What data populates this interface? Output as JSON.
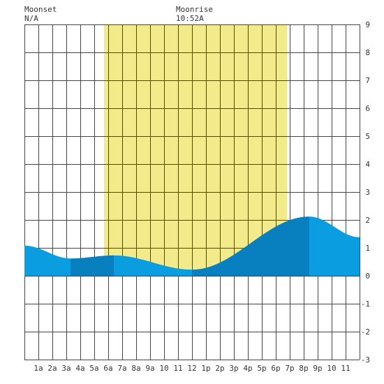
{
  "header": {
    "moonset_label": "Moonset",
    "moonset_value": "N/A",
    "moonrise_label": "Moonrise",
    "moonrise_value": "10:52A"
  },
  "colors": {
    "background": "#ffffff",
    "daylight": "#f3ea8c",
    "grid": "#444444",
    "tide_light": "#0a9de0",
    "tide_dark": "#0880bf"
  },
  "chart_data": {
    "type": "area",
    "title": "",
    "xlabel": "",
    "ylabel": "",
    "xlim": [
      0,
      24
    ],
    "ylim": [
      -3,
      9
    ],
    "grid": true,
    "x_ticks": [
      {
        "x": 1,
        "label": "1a"
      },
      {
        "x": 2,
        "label": "2a"
      },
      {
        "x": 3,
        "label": "3a"
      },
      {
        "x": 4,
        "label": "4a"
      },
      {
        "x": 5,
        "label": "5a"
      },
      {
        "x": 6,
        "label": "6a"
      },
      {
        "x": 7,
        "label": "7a"
      },
      {
        "x": 8,
        "label": "8a"
      },
      {
        "x": 9,
        "label": "9a"
      },
      {
        "x": 10,
        "label": "10"
      },
      {
        "x": 11,
        "label": "11"
      },
      {
        "x": 12,
        "label": "12"
      },
      {
        "x": 13,
        "label": "1p"
      },
      {
        "x": 14,
        "label": "2p"
      },
      {
        "x": 15,
        "label": "3p"
      },
      {
        "x": 16,
        "label": "4p"
      },
      {
        "x": 17,
        "label": "5p"
      },
      {
        "x": 18,
        "label": "6p"
      },
      {
        "x": 19,
        "label": "7p"
      },
      {
        "x": 20,
        "label": "8p"
      },
      {
        "x": 21,
        "label": "9p"
      },
      {
        "x": 22,
        "label": "10"
      },
      {
        "x": 23,
        "label": "11"
      }
    ],
    "y_ticks": [
      9,
      8,
      7,
      6,
      5,
      4,
      3,
      2,
      1,
      0,
      -1,
      -2,
      -3
    ],
    "daylight_hours": [
      5.7,
      18.8
    ],
    "shading_bands": [
      {
        "from": 0,
        "to": 3.3,
        "shade": "light"
      },
      {
        "from": 3.3,
        "to": 6.4,
        "shade": "dark"
      },
      {
        "from": 6.4,
        "to": 12.0,
        "shade": "light"
      },
      {
        "from": 12.0,
        "to": 20.4,
        "shade": "dark"
      },
      {
        "from": 20.4,
        "to": 24,
        "shade": "light"
      }
    ],
    "tide_extrema": [
      {
        "time": 3.3,
        "height": 0.62
      },
      {
        "time": 6.4,
        "height": 0.73
      },
      {
        "time": 12.0,
        "height": 0.22
      },
      {
        "time": 20.4,
        "height": 2.12
      }
    ],
    "tide_start": {
      "time": 0,
      "height": 1.08
    },
    "tide_end": {
      "time": 24,
      "height": 1.38
    }
  }
}
